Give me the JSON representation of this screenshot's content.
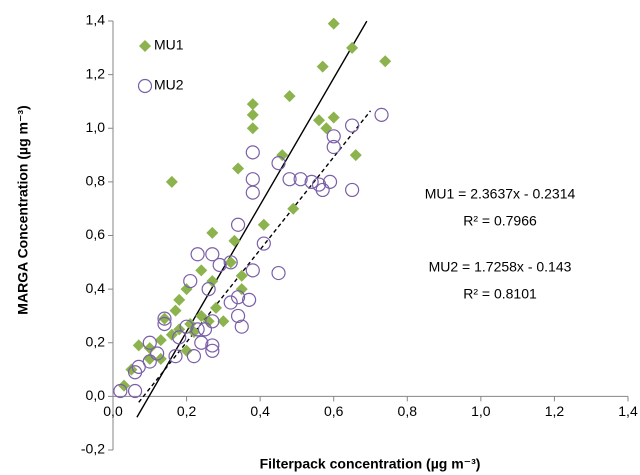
{
  "chart_data": {
    "type": "scatter",
    "x_label": "Filterpack concentration (µg m⁻³)",
    "y_label": "MARGA Concentration (µg m⁻³)",
    "xlim": [
      0,
      1.4
    ],
    "ylim": [
      -0.2,
      1.4
    ],
    "xticks": [
      {
        "value": 0,
        "label": "0,0"
      },
      {
        "value": 0.2,
        "label": "0,2"
      },
      {
        "value": 0.4,
        "label": "0,4"
      },
      {
        "value": 0.6,
        "label": "0,6"
      },
      {
        "value": 0.8,
        "label": "0,8"
      },
      {
        "value": 1,
        "label": "1,0"
      },
      {
        "value": 1.2,
        "label": "1,2"
      },
      {
        "value": 1.4,
        "label": "1,4"
      }
    ],
    "yticks": [
      {
        "value": -0.2,
        "label": "-0,2"
      },
      {
        "value": 0,
        "label": "0,0"
      },
      {
        "value": 0.2,
        "label": "0,2"
      },
      {
        "value": 0.4,
        "label": "0,4"
      },
      {
        "value": 0.6,
        "label": "0,6"
      },
      {
        "value": 0.8,
        "label": "0,8"
      },
      {
        "value": 1,
        "label": "1,0"
      },
      {
        "value": 1.2,
        "label": "1,2"
      },
      {
        "value": 1.4,
        "label": "1,4"
      }
    ],
    "grid": false,
    "legend": "top-left",
    "series": [
      {
        "name": "MU1",
        "color": "#8cb34e",
        "marker": "diamond",
        "x": [
          0.6,
          0.65,
          0.74,
          0.57,
          0.48,
          0.38,
          0.38,
          0.38,
          0.56,
          0.6,
          0.58,
          0.66,
          0.46,
          0.34,
          0.16,
          0.49,
          0.41,
          0.27,
          0.33,
          0.32,
          0.24,
          0.35,
          0.27,
          0.2,
          0.35,
          0.18,
          0.28,
          0.07,
          0.1,
          0.13,
          0.16,
          0.18,
          0.21,
          0.14,
          0.17,
          0.24,
          0.26,
          0.2,
          0.03,
          0.05,
          0.1,
          0.13,
          0.22,
          0.3
        ],
        "y": [
          1.39,
          1.3,
          1.25,
          1.23,
          1.12,
          1.09,
          1.05,
          1.0,
          1.03,
          1.04,
          1.0,
          0.9,
          0.9,
          0.85,
          0.8,
          0.7,
          0.64,
          0.61,
          0.58,
          0.5,
          0.47,
          0.45,
          0.43,
          0.4,
          0.4,
          0.36,
          0.33,
          0.19,
          0.18,
          0.21,
          0.23,
          0.25,
          0.27,
          0.29,
          0.32,
          0.3,
          0.28,
          0.17,
          0.04,
          0.1,
          0.14,
          0.14,
          0.24,
          0.28
        ]
      },
      {
        "name": "MU2",
        "color": "#7a5fa8",
        "marker": "circle",
        "x": [
          0.73,
          0.65,
          0.6,
          0.6,
          0.38,
          0.45,
          0.65,
          0.57,
          0.56,
          0.54,
          0.51,
          0.48,
          0.59,
          0.38,
          0.38,
          0.34,
          0.41,
          0.23,
          0.27,
          0.32,
          0.29,
          0.38,
          0.45,
          0.21,
          0.26,
          0.34,
          0.37,
          0.32,
          0.34,
          0.35,
          0.27,
          0.25,
          0.14,
          0.14,
          0.2,
          0.23,
          0.18,
          0.24,
          0.27,
          0.27,
          0.22,
          0.17,
          0.1,
          0.02,
          0.06,
          0.07,
          0.06,
          0.1,
          0.12
        ],
        "y": [
          1.05,
          1.01,
          0.97,
          0.93,
          0.91,
          0.87,
          0.77,
          0.77,
          0.79,
          0.8,
          0.81,
          0.81,
          0.8,
          0.81,
          0.76,
          0.64,
          0.57,
          0.53,
          0.53,
          0.5,
          0.49,
          0.47,
          0.46,
          0.43,
          0.4,
          0.37,
          0.36,
          0.35,
          0.3,
          0.26,
          0.28,
          0.25,
          0.29,
          0.27,
          0.26,
          0.25,
          0.22,
          0.2,
          0.19,
          0.17,
          0.15,
          0.15,
          0.13,
          0.02,
          0.02,
          0.11,
          0.09,
          0.2,
          0.16
        ]
      }
    ],
    "trendlines": [
      {
        "slope": 2.3637,
        "intercept": -0.2314,
        "xlim": [
          0.065,
          0.69
        ],
        "color": "#000000",
        "dashed": false
      },
      {
        "slope": 1.7258,
        "intercept": -0.143,
        "xlim": [
          0.07,
          0.7
        ],
        "color": "#000000",
        "dashed": true
      }
    ],
    "annotations": [
      "MU1 = 2.3637x - 0.2314",
      "R² = 0.7966",
      "MU2 = 1.7258x - 0.143",
      "R² = 0.8101"
    ]
  }
}
